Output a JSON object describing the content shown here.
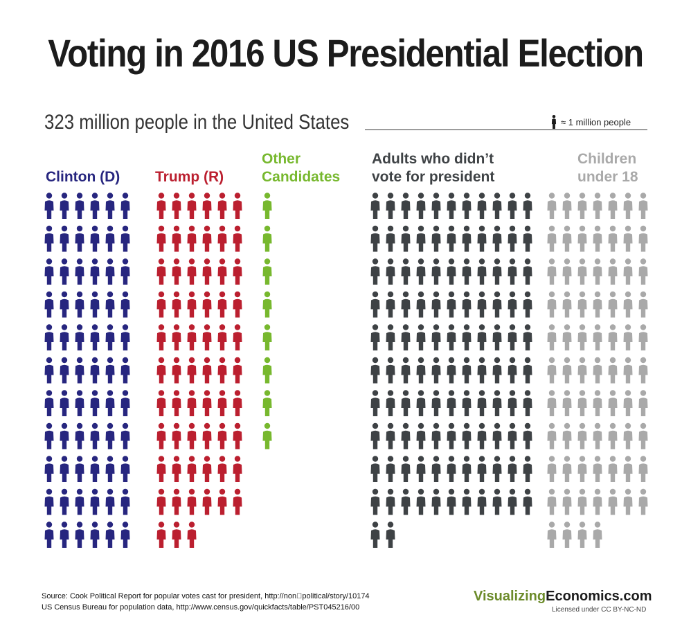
{
  "title": "Voting in 2016 US Presidential Election",
  "subtitle": "323 million people in the United States",
  "legend_key": "≈ 1 million people",
  "chart_data": {
    "type": "pictograph",
    "unit": "≈ 1 million people",
    "total_label": "323 million people in the United States",
    "series": [
      {
        "name": "Clinton (D)",
        "label_lines": [
          "Clinton (D)"
        ],
        "value": 66,
        "color": "#27267f"
      },
      {
        "name": "Trump (R)",
        "label_lines": [
          "Trump (R)"
        ],
        "value": 63,
        "color": "#bb1f2f"
      },
      {
        "name": "Other Candidates",
        "label_lines": [
          "Other",
          "Candidates"
        ],
        "value": 8,
        "color": "#77b82e"
      },
      {
        "name": "Adults who didn't vote for president",
        "label_lines": [
          "Adults who didn’t",
          "vote for president"
        ],
        "value": 112,
        "color": "#3e4245"
      },
      {
        "name": "Children under 18",
        "label_lines": [
          "Children",
          "under 18"
        ],
        "value": 74,
        "color": "#a9a9a9"
      }
    ]
  },
  "footer": {
    "source_line1": "Source:  Cook Political Report for popular votes cast for president, http://non\u0000political/story/10174",
    "source_line2": "US Census Bureau for population data, http://www.census.gov/quickfacts/table/PST045216/00",
    "brand_part1": "Visualizing",
    "brand_part2": "Economics.com",
    "license": "Licensed under CC BY-NC-ND"
  }
}
